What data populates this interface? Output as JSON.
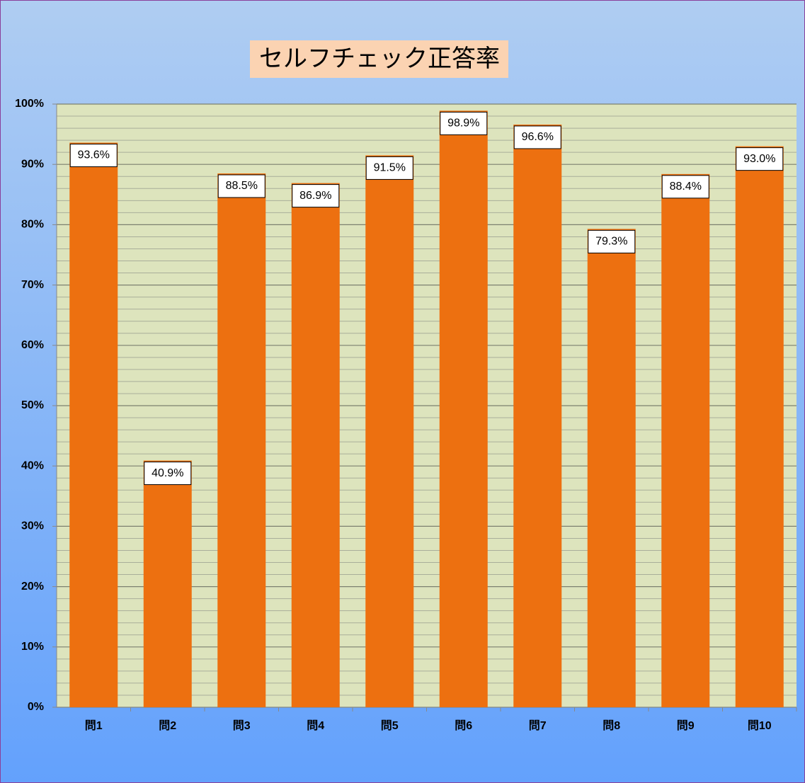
{
  "chart_data": {
    "type": "bar",
    "title": "セルフチェック正答率",
    "categories": [
      "問1",
      "問2",
      "問3",
      "問4",
      "問5",
      "問6",
      "問7",
      "問8",
      "問9",
      "問10"
    ],
    "values": [
      93.6,
      40.9,
      88.5,
      86.9,
      91.5,
      98.9,
      96.6,
      79.3,
      88.4,
      93.0
    ],
    "value_labels": [
      "93.6%",
      "40.9%",
      "88.5%",
      "86.9%",
      "91.5%",
      "98.9%",
      "96.6%",
      "79.3%",
      "88.4%",
      "93.0%"
    ],
    "color": "#ed7010",
    "ylim": [
      0,
      100
    ],
    "yticks": [
      {
        "value": 0,
        "label": "0%"
      },
      {
        "value": 10,
        "label": "10%"
      },
      {
        "value": 20,
        "label": "20%"
      },
      {
        "value": 30,
        "label": "30%"
      },
      {
        "value": 40,
        "label": "40%"
      },
      {
        "value": 50,
        "label": "50%"
      },
      {
        "value": 60,
        "label": "60%"
      },
      {
        "value": 70,
        "label": "70%"
      },
      {
        "value": 80,
        "label": "80%"
      },
      {
        "value": 90,
        "label": "90%"
      },
      {
        "value": 100,
        "label": "100%"
      }
    ],
    "yticks_minor": [
      2,
      4,
      6,
      8,
      12,
      14,
      16,
      18,
      22,
      24,
      26,
      28,
      32,
      34,
      36,
      38,
      42,
      44,
      46,
      48,
      52,
      54,
      56,
      58,
      62,
      64,
      66,
      68,
      72,
      74,
      76,
      78,
      82,
      84,
      86,
      88,
      92,
      94,
      96,
      98
    ],
    "grid": true
  }
}
